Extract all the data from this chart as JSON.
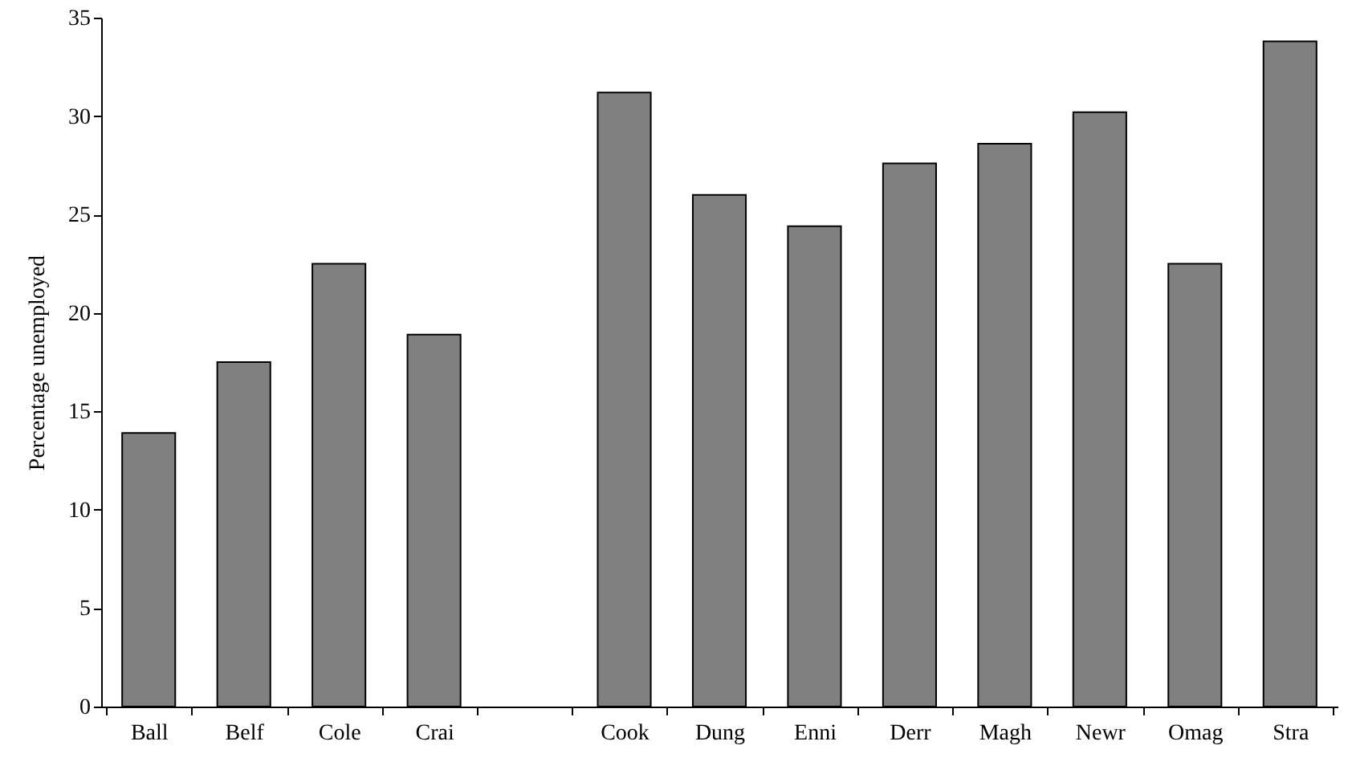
{
  "chart_data": {
    "type": "bar",
    "ylabel": "Percentage unemployed",
    "categories": [
      "Ball",
      "Belf",
      "Cole",
      "Crai",
      null,
      "Cook",
      "Dung",
      "Enni",
      "Derr",
      "Magh",
      "Newr",
      "Omag",
      "Stra"
    ],
    "values": [
      13.9,
      17.5,
      22.5,
      18.9,
      null,
      31.2,
      26.0,
      24.4,
      27.6,
      28.6,
      30.2,
      22.5,
      33.8
    ],
    "color": "#808080",
    "ylim": [
      0,
      35
    ],
    "yticks": [
      0,
      5,
      10,
      15,
      20,
      25,
      30,
      35
    ],
    "grid": false
  }
}
